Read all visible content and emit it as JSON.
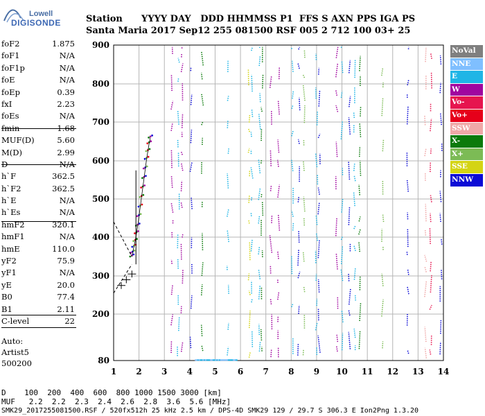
{
  "logo": {
    "line1": "Lowell",
    "line2": "DIGISONDE"
  },
  "header": {
    "row1": "Station      YYYY DAY   DDD HHMMSS P1  FFS S AXN PPS IGA PS",
    "row2": "Santa Maria 2017 Sep12 255 081500 RSF 005 2 712 100 03+ 25"
  },
  "params": [
    {
      "key": "foF2",
      "value": "1.875"
    },
    {
      "key": "foF1",
      "value": "N/A"
    },
    {
      "key": "foF1p",
      "value": "N/A"
    },
    {
      "key": "foE",
      "value": "N/A"
    },
    {
      "key": "foEp",
      "value": "0.39"
    },
    {
      "key": "fxI",
      "value": "2.23"
    },
    {
      "key": "foEs",
      "value": "N/A"
    },
    {
      "key": "fmin",
      "value": "1.68"
    },
    {
      "key": "MUF(D)",
      "value": "5.60"
    },
    {
      "key": "M(D)",
      "value": "2.99"
    },
    {
      "key": "D",
      "value": "N/A"
    },
    {
      "key": "h`F",
      "value": "362.5"
    },
    {
      "key": "h`F2",
      "value": "362.5"
    },
    {
      "key": "h`E",
      "value": "N/A"
    },
    {
      "key": "h`Es",
      "value": "N/A"
    },
    {
      "key": "hmF2",
      "value": "320.1"
    },
    {
      "key": "hmF1",
      "value": "N/A"
    },
    {
      "key": "hmE",
      "value": "110.0"
    },
    {
      "key": "yF2",
      "value": "75.9"
    },
    {
      "key": "yF1",
      "value": "N/A"
    },
    {
      "key": "yE",
      "value": "20.0"
    },
    {
      "key": "B0",
      "value": "77.4"
    },
    {
      "key": "B1",
      "value": "2.11"
    },
    {
      "key": "C-level",
      "value": "22"
    }
  ],
  "autoscaling": {
    "line1": "Auto:",
    "line2": "Artist5",
    "line3": "500200"
  },
  "footer": {
    "row1": "D    100  200  400  600  800 1000 1500 3000 [km]",
    "row2": "MUF   2.2  2.2  2.3  2.4  2.6  2.8  3.6  5.6 [MHz]",
    "row3": "SMK29_2017255081500.RSF / 520fx512h 25 kHz 2.5 km / DPS-4D SMK29 129 / 29.7 S 306.3 E Ion2Png 1.3.20"
  },
  "legend": [
    {
      "label": "NoVal",
      "color": "#7f7f7f"
    },
    {
      "label": "NNE",
      "color": "#7fbfff"
    },
    {
      "label": "E",
      "color": "#1fb5e6"
    },
    {
      "label": "W",
      "color": "#a0059f"
    },
    {
      "label": "Vo-",
      "color": "#e6154f"
    },
    {
      "label": "Vo+",
      "color": "#e6001a"
    },
    {
      "label": "SSW",
      "color": "#f0a8a8"
    },
    {
      "label": "X-",
      "color": "#0b7a0b"
    },
    {
      "label": "X+",
      "color": "#7cbb55"
    },
    {
      "label": "SSE",
      "color": "#d4d414"
    },
    {
      "label": "NNW",
      "color": "#0b0bd6"
    }
  ],
  "chart_data": {
    "type": "scatter",
    "xlim": [
      1,
      14
    ],
    "ylim": [
      80,
      900
    ],
    "xticks": [
      "1",
      "2",
      "3",
      "4",
      "5",
      "6",
      "7",
      "8",
      "9",
      "10",
      "11",
      "12",
      "13",
      "14"
    ],
    "yticks": [
      "80",
      "200",
      "300",
      "400",
      "500",
      "600",
      "700",
      "800",
      "900"
    ],
    "ytick_values": [
      80,
      200,
      300,
      400,
      500,
      600,
      700,
      800,
      900
    ],
    "trace": {
      "name": "O-trace",
      "points": [
        [
          1.72,
          350
        ],
        [
          1.75,
          360
        ],
        [
          1.8,
          375
        ],
        [
          1.85,
          390
        ],
        [
          1.9,
          410
        ],
        [
          1.95,
          430
        ],
        [
          2.0,
          455
        ],
        [
          2.05,
          480
        ],
        [
          2.1,
          505
        ],
        [
          2.15,
          530
        ],
        [
          2.2,
          555
        ],
        [
          2.25,
          580
        ],
        [
          2.3,
          605
        ],
        [
          2.35,
          625
        ],
        [
          2.4,
          645
        ],
        [
          2.45,
          660
        ]
      ]
    },
    "clutter_columns": [
      {
        "x": 3.3,
        "color": "#a0059f"
      },
      {
        "x": 3.55,
        "color": "#1fb5e6"
      },
      {
        "x": 3.7,
        "color": "#a0059f"
      },
      {
        "x": 4.05,
        "color": "#0b0bd6"
      },
      {
        "x": 4.5,
        "color": "#0b7a0b"
      },
      {
        "x": 5.5,
        "color": "#1fb5e6"
      },
      {
        "x": 6.35,
        "color": "#d4d414"
      },
      {
        "x": 6.45,
        "color": "#1fb5e6"
      },
      {
        "x": 6.75,
        "color": "#1fb5e6"
      },
      {
        "x": 6.85,
        "color": "#0b7a0b"
      },
      {
        "x": 7.2,
        "color": "#a0059f"
      },
      {
        "x": 7.5,
        "color": "#a0059f"
      },
      {
        "x": 8.05,
        "color": "#1fb5e6"
      },
      {
        "x": 8.3,
        "color": "#0b0bd6"
      },
      {
        "x": 8.5,
        "color": "#7cbb55"
      },
      {
        "x": 9.0,
        "color": "#1fb5e6"
      },
      {
        "x": 9.1,
        "color": "#0b0bd6"
      },
      {
        "x": 9.8,
        "color": "#a0059f"
      },
      {
        "x": 10.0,
        "color": "#1fb5e6"
      },
      {
        "x": 10.3,
        "color": "#0b0bd6"
      },
      {
        "x": 10.5,
        "color": "#1fb5e6"
      },
      {
        "x": 10.7,
        "color": "#0b7a0b"
      },
      {
        "x": 11.6,
        "color": "#7cbb55"
      },
      {
        "x": 12.6,
        "color": "#0b0bd6"
      },
      {
        "x": 13.3,
        "color": "#f0a8a8"
      },
      {
        "x": 13.5,
        "color": "#e6154f"
      },
      {
        "x": 13.9,
        "color": "#0b0bd6"
      }
    ],
    "grid": true
  }
}
